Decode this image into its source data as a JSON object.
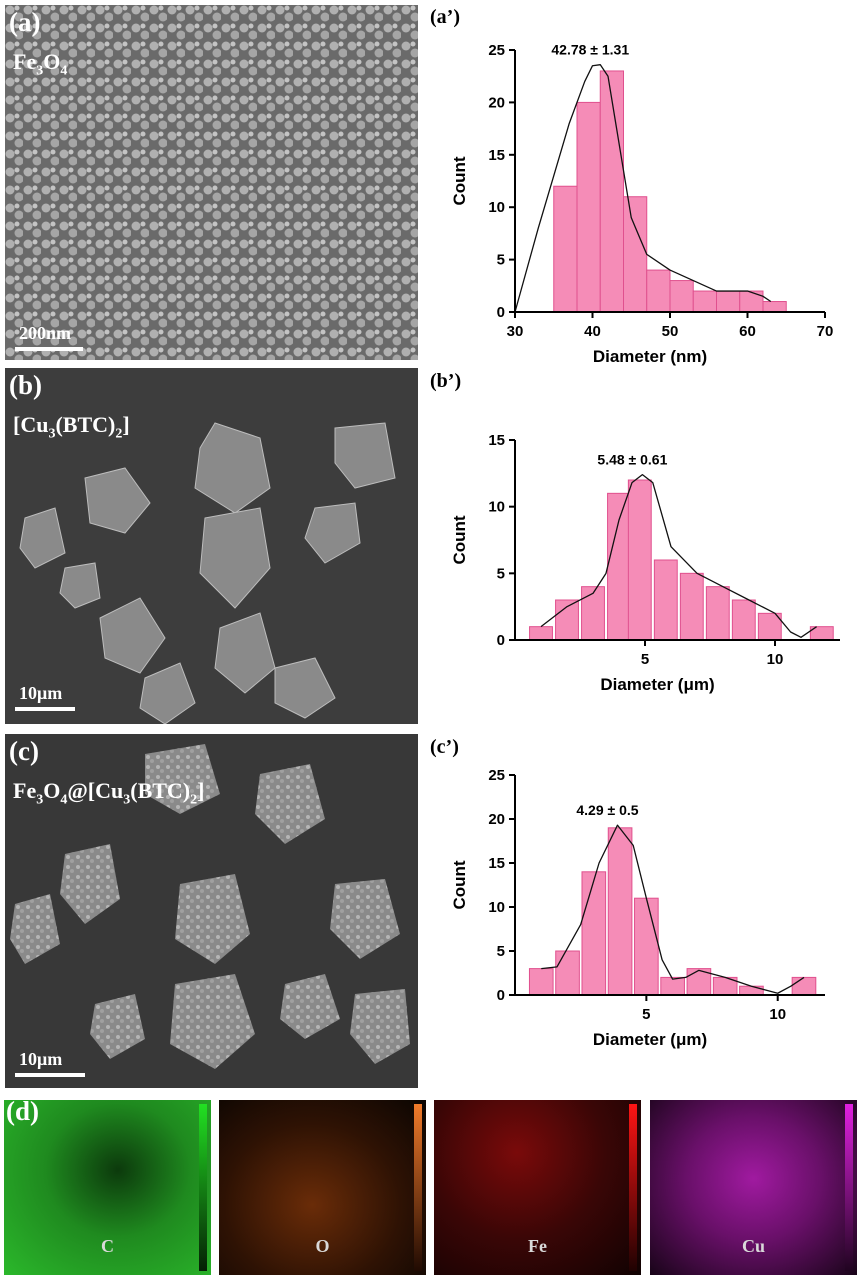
{
  "panels": {
    "a": {
      "label": "(a)",
      "sample_pre": "Fe",
      "sample_s1": "3",
      "sample_mid": "O",
      "sample_s2": "4",
      "scale": "200nm"
    },
    "b": {
      "label": "(b)",
      "sample_pre": "[Cu",
      "sample_s1": "3",
      "sample_mid": "(BTC)",
      "sample_s2": "2",
      "sample_post": "]",
      "scale": "10μm"
    },
    "c": {
      "label": "(c)",
      "sample_pre": "Fe",
      "sample_s1": "3",
      "sample_mid": "O",
      "sample_s2": "4",
      "sample_mid2": "@[Cu",
      "sample_s3": "3",
      "sample_mid3": "(BTC)",
      "sample_s4": "2",
      "sample_post": "]",
      "scale": "10μm"
    },
    "d": {
      "label": "(d)"
    }
  },
  "maps": [
    {
      "element": "C",
      "color": "#22e022"
    },
    {
      "element": "O",
      "color": "#f07a2a"
    },
    {
      "element": "Fe",
      "color": "#ff1414"
    },
    {
      "element": "Cu",
      "color": "#e020e0"
    }
  ],
  "colors": {
    "bar_fill": "#f58cb7",
    "bar_stroke": "#e0508e",
    "curve": "#111111"
  },
  "chart_data": [
    {
      "type": "bar",
      "panel_label": "(a’)",
      "annotation": "42.78 ± 1.31",
      "xlabel": "Diameter (nm)",
      "ylabel": "Count",
      "xlim": [
        30,
        70
      ],
      "ylim": [
        0,
        25
      ],
      "xticks": [
        30,
        40,
        50,
        60,
        70
      ],
      "yticks": [
        0,
        5,
        10,
        15,
        20,
        25
      ],
      "bin_width": 3,
      "centers": [
        36.5,
        39.5,
        42.5,
        45.5,
        48.5,
        51.5,
        54.5,
        57.5,
        60.5,
        63.5
      ],
      "values": [
        12,
        20,
        23,
        11,
        4,
        3,
        2,
        2,
        2,
        1
      ],
      "curve_x": [
        30,
        33,
        35,
        37,
        39,
        40,
        41,
        42,
        43,
        45,
        47,
        50,
        53,
        56,
        58,
        60,
        62,
        63
      ],
      "curve_y": [
        0,
        8,
        13,
        18,
        22,
        23.5,
        23.6,
        22.5,
        18,
        9,
        5.5,
        4,
        3,
        2,
        2,
        2,
        1.5,
        1
      ]
    },
    {
      "type": "bar",
      "panel_label": "(b’)",
      "annotation": "5.48 ± 0.61",
      "xlabel": "Diameter (μm)",
      "ylabel": "Count",
      "xlim": [
        0,
        12.5
      ],
      "ylim": [
        0,
        15
      ],
      "xticks": [
        5,
        10
      ],
      "yticks": [
        0,
        5,
        10,
        15
      ],
      "bin_width": 0.88,
      "centers": [
        1,
        2,
        3,
        4,
        4.8,
        5.8,
        6.8,
        7.8,
        8.8,
        9.8,
        10.8,
        11.8
      ],
      "values": [
        1,
        3,
        4,
        11,
        12,
        6,
        5,
        4,
        3,
        2,
        0,
        1
      ],
      "curve_x": [
        1,
        2,
        3,
        3.5,
        4,
        4.5,
        4.9,
        5.3,
        6,
        7,
        8,
        9,
        10,
        10.6,
        11,
        11.6
      ],
      "curve_y": [
        1,
        2.5,
        3.5,
        5,
        9,
        11.8,
        12.4,
        11.8,
        7,
        5,
        4,
        3,
        2,
        0.6,
        0.2,
        1
      ]
    },
    {
      "type": "bar",
      "panel_label": "(c’)",
      "annotation": "4.29 ± 0.5",
      "xlabel": "Diameter (μm)",
      "ylabel": "Count",
      "xlim": [
        0,
        11.8
      ],
      "ylim": [
        0,
        25
      ],
      "xticks": [
        5,
        10
      ],
      "yticks": [
        0,
        5,
        10,
        15,
        20,
        25
      ],
      "bin_width": 0.9,
      "centers": [
        1,
        2,
        3,
        4,
        5,
        6,
        7,
        8,
        9,
        10,
        11
      ],
      "values": [
        3,
        5,
        14,
        19,
        11,
        2,
        3,
        2,
        1,
        0,
        2
      ],
      "curve_x": [
        1,
        1.6,
        2.5,
        3.2,
        3.9,
        4.5,
        5,
        5.6,
        6,
        6.5,
        7,
        8,
        9,
        10,
        10.5,
        11
      ],
      "curve_y": [
        3,
        3.2,
        8,
        15,
        19.3,
        17,
        11,
        4,
        1.8,
        2,
        2.8,
        2,
        1,
        0.2,
        1,
        2
      ]
    }
  ]
}
